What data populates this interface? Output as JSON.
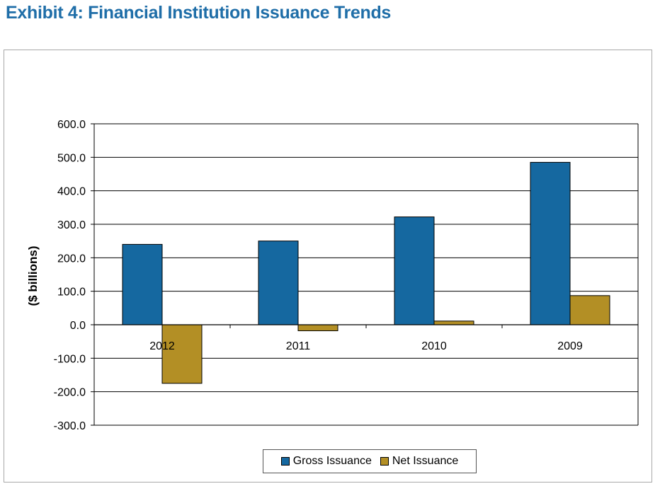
{
  "title": "Exhibit 4: Financial Institution Issuance Trends",
  "colors": {
    "title": "#1f6ea8",
    "gross": "#1568a0",
    "net": "#b38f25"
  },
  "chart_data": {
    "type": "bar",
    "title": "Exhibit 4: Financial Institution Issuance Trends",
    "xlabel": "",
    "ylabel": "($ billions)",
    "categories": [
      "2012",
      "2011",
      "2010",
      "2009"
    ],
    "series": [
      {
        "name": "Gross Issuance",
        "values": [
          240,
          250,
          322,
          485
        ]
      },
      {
        "name": "Net Issuance",
        "values": [
          -175,
          -18,
          11,
          87
        ]
      }
    ],
    "ylim": [
      -300,
      600
    ],
    "yticks": [
      "600.0",
      "500.0",
      "400.0",
      "300.0",
      "200.0",
      "100.0",
      "0.0",
      "-100.0",
      "-200.0",
      "-300.0"
    ],
    "ytick_values": [
      600,
      500,
      400,
      300,
      200,
      100,
      0,
      -100,
      -200,
      -300
    ],
    "grid": true,
    "legend_position": "bottom"
  }
}
